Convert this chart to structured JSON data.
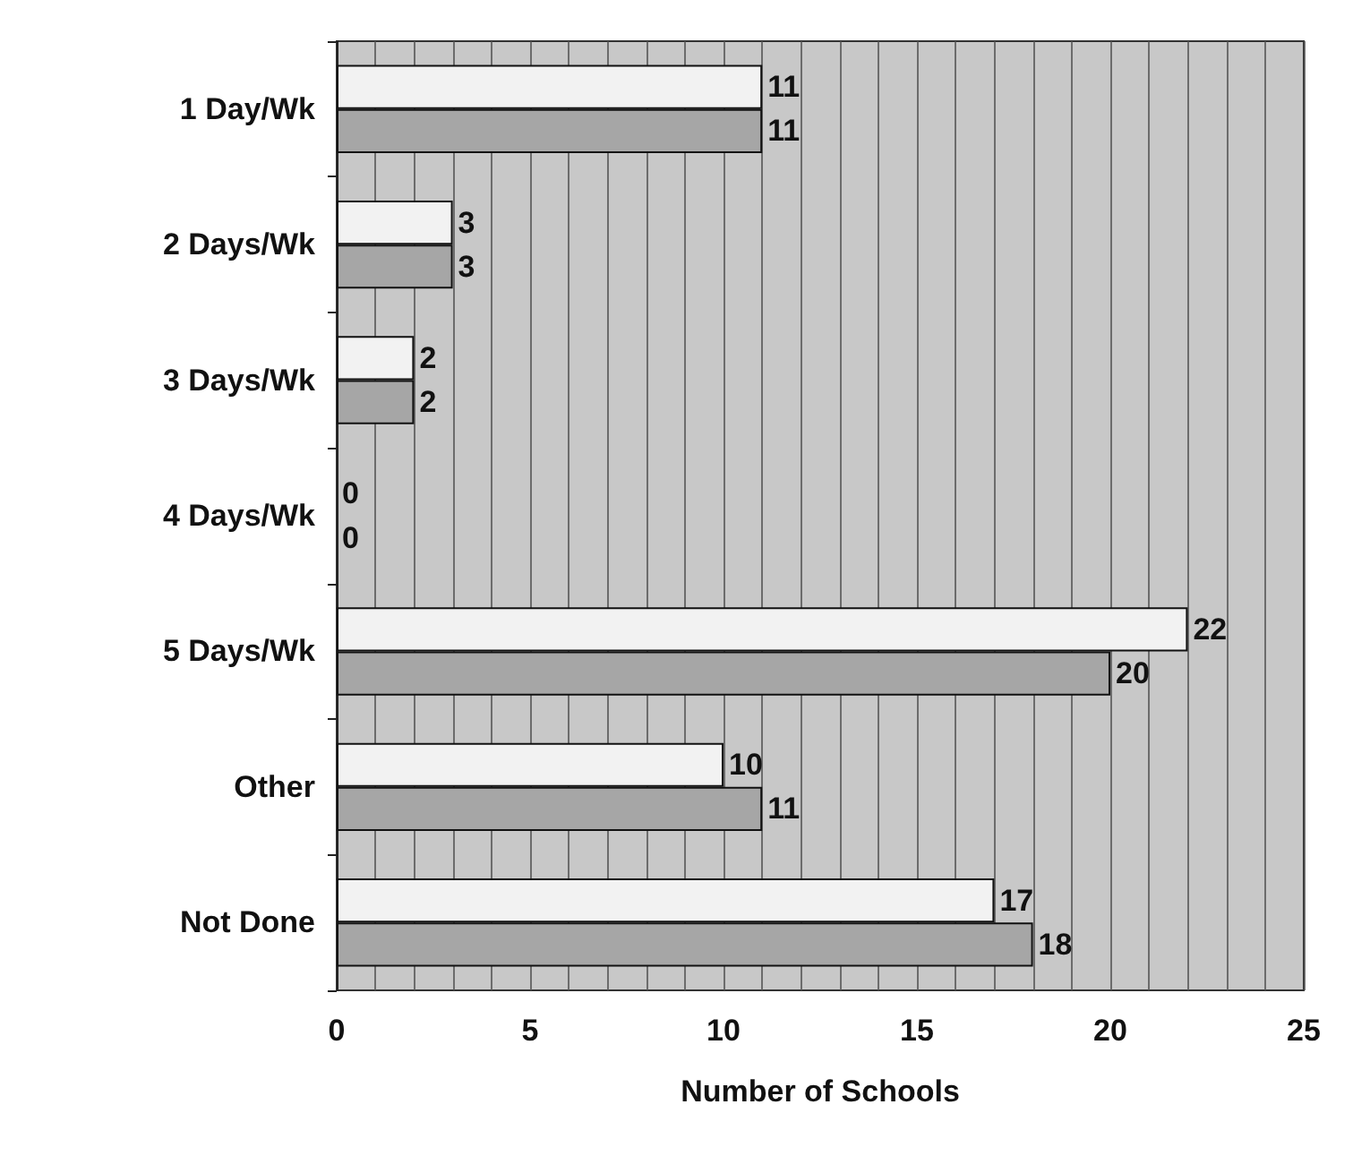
{
  "chart_data": {
    "type": "bar",
    "orientation": "horizontal",
    "xlabel": "Number of Schools",
    "categories": [
      "1 Day/Wk",
      "2 Days/Wk",
      "3 Days/Wk",
      "4 Days/Wk",
      "5 Days/Wk",
      "Other",
      "Not Done"
    ],
    "series": [
      {
        "color": "#f2f2f2",
        "values": [
          11,
          3,
          2,
          0,
          22,
          10,
          17
        ]
      },
      {
        "color": "#a6a6a6",
        "values": [
          11,
          3,
          2,
          0,
          20,
          11,
          18
        ]
      }
    ],
    "xlim": [
      0,
      25
    ],
    "xticks": [
      0,
      {
        "value": 1,
        "label": null
      },
      {
        "value": 2,
        "label": null
      },
      {
        "value": 3,
        "label": null
      },
      {
        "value": 4,
        "label": null
      },
      5,
      {
        "value": 6,
        "label": null
      },
      {
        "value": 7,
        "label": null
      },
      {
        "value": 8,
        "label": null
      },
      {
        "value": 9,
        "label": null
      },
      10,
      {
        "value": 11,
        "label": null
      },
      {
        "value": 12,
        "label": null
      },
      {
        "value": 13,
        "label": null
      },
      {
        "value": 14,
        "label": null
      },
      15,
      {
        "value": 16,
        "label": null
      },
      {
        "value": 17,
        "label": null
      },
      {
        "value": 18,
        "label": null
      },
      {
        "value": 19,
        "label": null
      },
      20,
      {
        "value": 21,
        "label": null
      },
      {
        "value": 22,
        "label": null
      },
      {
        "value": 23,
        "label": null
      },
      {
        "value": 24,
        "label": null
      },
      25
    ],
    "grid": "x",
    "data_labels": true
  }
}
